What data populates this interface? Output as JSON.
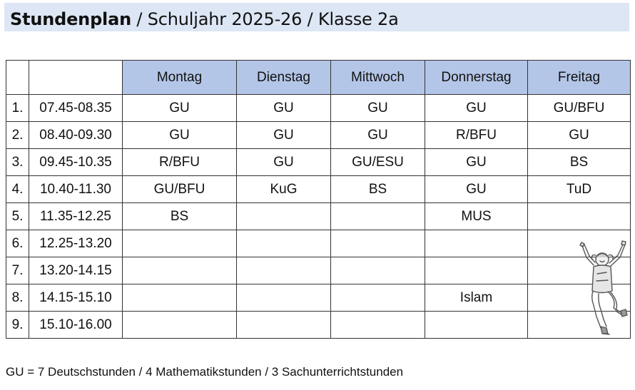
{
  "title": {
    "bold": "Stundenplan",
    "rest": " / Schuljahr 2025-26 / Klasse 2a"
  },
  "table": {
    "days": [
      "Montag",
      "Dienstag",
      "Mittwoch",
      "Donnerstag",
      "Freitag"
    ],
    "rows": [
      {
        "nr": "1.",
        "time": "07.45-08.35",
        "cells": [
          "GU",
          "GU",
          "GU",
          "GU",
          "GU/BFU"
        ]
      },
      {
        "nr": "2.",
        "time": "08.40-09.30",
        "cells": [
          "GU",
          "GU",
          "GU",
          "R/BFU",
          "GU"
        ]
      },
      {
        "nr": "3.",
        "time": "09.45-10.35",
        "cells": [
          "R/BFU",
          "GU",
          "GU/ESU",
          "GU",
          "BS"
        ]
      },
      {
        "nr": "4.",
        "time": "10.40-11.30",
        "cells": [
          "GU/BFU",
          "KuG",
          "BS",
          "GU",
          "TuD"
        ]
      },
      {
        "nr": "5.",
        "time": "11.35-12.25",
        "cells": [
          "BS",
          "",
          "",
          "MUS",
          ""
        ]
      },
      {
        "nr": "6.",
        "time": "12.25-13.20",
        "cells": [
          "",
          "",
          "",
          "",
          ""
        ]
      },
      {
        "nr": "7.",
        "time": "13.20-14.15",
        "cells": [
          "",
          "",
          "",
          "",
          ""
        ]
      },
      {
        "nr": "8.",
        "time": "14.15-15.10",
        "cells": [
          "",
          "",
          "",
          "Islam",
          ""
        ]
      },
      {
        "nr": "9.",
        "time": "15.10-16.00",
        "cells": [
          "",
          "",
          "",
          "",
          ""
        ]
      }
    ]
  },
  "illustration": {
    "icon": "cheering-child-icon"
  },
  "legend": "GU = 7 Deutschstunden / 4 Mathematikstunden / 3 Sachunterrichtstunden"
}
